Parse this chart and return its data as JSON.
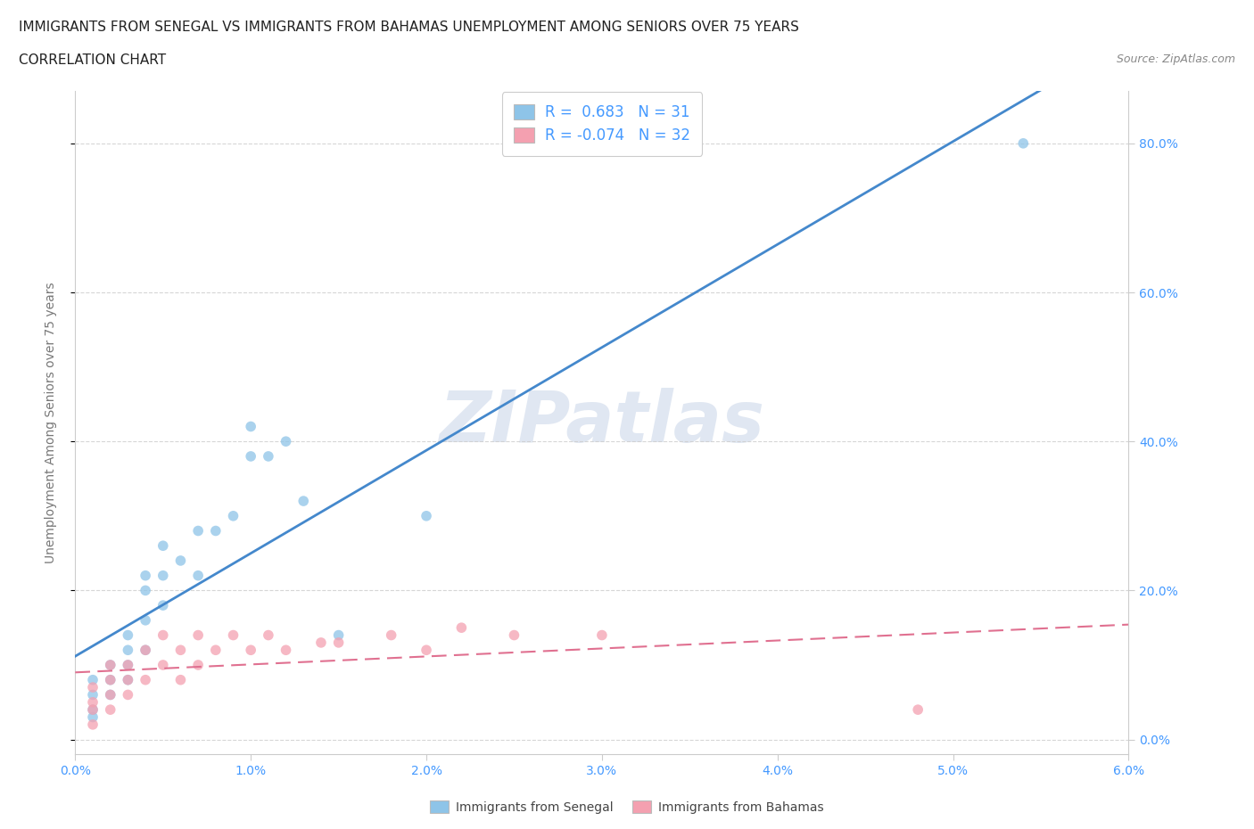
{
  "title_line1": "IMMIGRANTS FROM SENEGAL VS IMMIGRANTS FROM BAHAMAS UNEMPLOYMENT AMONG SENIORS OVER 75 YEARS",
  "title_line2": "CORRELATION CHART",
  "source_text": "Source: ZipAtlas.com",
  "ylabel": "Unemployment Among Seniors over 75 years",
  "watermark_zip": "ZIP",
  "watermark_atlas": "atlas",
  "xlim": [
    0.0,
    0.06
  ],
  "ylim": [
    -0.02,
    0.87
  ],
  "xticks": [
    0.0,
    0.01,
    0.02,
    0.03,
    0.04,
    0.05,
    0.06
  ],
  "xtick_labels": [
    "0.0%",
    "1.0%",
    "2.0%",
    "3.0%",
    "4.0%",
    "5.0%",
    "6.0%"
  ],
  "yticks": [
    0.0,
    0.2,
    0.4,
    0.6,
    0.8
  ],
  "ytick_labels": [
    "0.0%",
    "20.0%",
    "40.0%",
    "60.0%",
    "80.0%"
  ],
  "legend1_label_r": "R =  0.683",
  "legend1_label_n": "N = 31",
  "legend2_label_r": "R = -0.074",
  "legend2_label_n": "N = 32",
  "color_senegal": "#8ec4e8",
  "color_bahamas": "#f4a0b0",
  "color_senegal_line": "#4488cc",
  "color_bahamas_line": "#e07090",
  "background_color": "#ffffff",
  "scatter_alpha": 0.75,
  "scatter_size": 70,
  "senegal_x": [
    0.001,
    0.001,
    0.001,
    0.001,
    0.002,
    0.002,
    0.002,
    0.003,
    0.003,
    0.003,
    0.003,
    0.004,
    0.004,
    0.004,
    0.004,
    0.005,
    0.005,
    0.005,
    0.006,
    0.007,
    0.007,
    0.008,
    0.009,
    0.01,
    0.01,
    0.011,
    0.012,
    0.013,
    0.015,
    0.02,
    0.054
  ],
  "senegal_y": [
    0.03,
    0.04,
    0.06,
    0.08,
    0.06,
    0.08,
    0.1,
    0.08,
    0.1,
    0.12,
    0.14,
    0.12,
    0.16,
    0.2,
    0.22,
    0.18,
    0.22,
    0.26,
    0.24,
    0.22,
    0.28,
    0.28,
    0.3,
    0.38,
    0.42,
    0.38,
    0.4,
    0.32,
    0.14,
    0.3,
    0.8
  ],
  "bahamas_x": [
    0.001,
    0.001,
    0.001,
    0.001,
    0.002,
    0.002,
    0.002,
    0.002,
    0.003,
    0.003,
    0.003,
    0.004,
    0.004,
    0.005,
    0.005,
    0.006,
    0.006,
    0.007,
    0.007,
    0.008,
    0.009,
    0.01,
    0.011,
    0.012,
    0.014,
    0.015,
    0.018,
    0.02,
    0.022,
    0.025,
    0.03,
    0.048
  ],
  "bahamas_y": [
    0.02,
    0.04,
    0.05,
    0.07,
    0.04,
    0.06,
    0.08,
    0.1,
    0.06,
    0.08,
    0.1,
    0.08,
    0.12,
    0.1,
    0.14,
    0.08,
    0.12,
    0.1,
    0.14,
    0.12,
    0.14,
    0.12,
    0.14,
    0.12,
    0.13,
    0.13,
    0.14,
    0.12,
    0.15,
    0.14,
    0.14,
    0.04
  ],
  "grid_color": "#cccccc",
  "grid_alpha": 0.8,
  "tick_color": "#4499ff",
  "axis_label_color": "#777777"
}
